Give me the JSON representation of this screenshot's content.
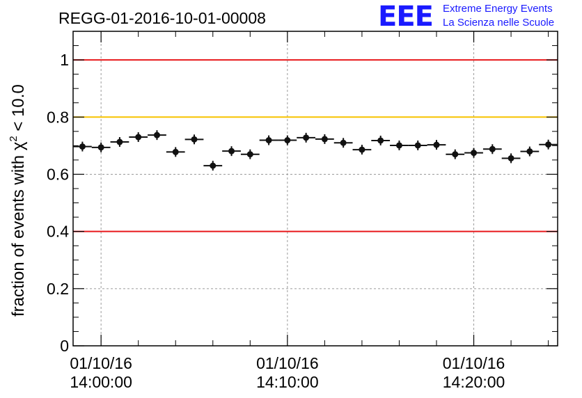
{
  "chart_data": {
    "type": "scatter",
    "title": "REGG-01-2016-10-01-00008",
    "ylabel_main": "fraction of events with χ",
    "ylabel_sup": "2",
    "ylabel_tail": " < 10.0",
    "xlabel": "",
    "ylim": [
      0,
      1.1
    ],
    "yticks": [
      0,
      0.2,
      0.4,
      0.6,
      0.8,
      1
    ],
    "yticklabels": [
      "0",
      "0.2",
      "0.4",
      "0.6",
      "0.8",
      "1"
    ],
    "xlim_minutes": [
      -1.5,
      24.5
    ],
    "xticks": [
      {
        "minutes": 0,
        "date": "01/10/16",
        "time": "14:00:00"
      },
      {
        "minutes": 10,
        "date": "01/10/16",
        "time": "14:10:00"
      },
      {
        "minutes": 20,
        "date": "01/10/16",
        "time": "14:20:00"
      }
    ],
    "grid": true,
    "reference_lines": [
      {
        "y": 1.0,
        "color": "#e8181b"
      },
      {
        "y": 0.8,
        "color": "#f7c300"
      },
      {
        "y": 0.4,
        "color": "#e8181b"
      }
    ],
    "series": [
      {
        "color": "#111111",
        "x_minutes": [
          -1,
          0,
          1,
          2,
          3,
          4,
          5,
          6,
          7,
          8,
          9,
          10,
          11,
          12,
          13,
          14,
          15,
          16,
          17,
          18,
          19,
          20,
          21,
          22,
          23,
          24
        ],
        "y": [
          0.697,
          0.694,
          0.713,
          0.73,
          0.737,
          0.678,
          0.722,
          0.63,
          0.681,
          0.67,
          0.719,
          0.719,
          0.728,
          0.723,
          0.71,
          0.686,
          0.718,
          0.701,
          0.701,
          0.703,
          0.67,
          0.675,
          0.688,
          0.656,
          0.68,
          0.704
        ],
        "yerr": 0.017,
        "xerr_minutes": 0.5
      }
    ]
  },
  "logo": {
    "mark": "EEE",
    "line1": "Extreme Energy Events",
    "line2": "La Scienza nelle Scuole",
    "color": "#1a1aff"
  }
}
